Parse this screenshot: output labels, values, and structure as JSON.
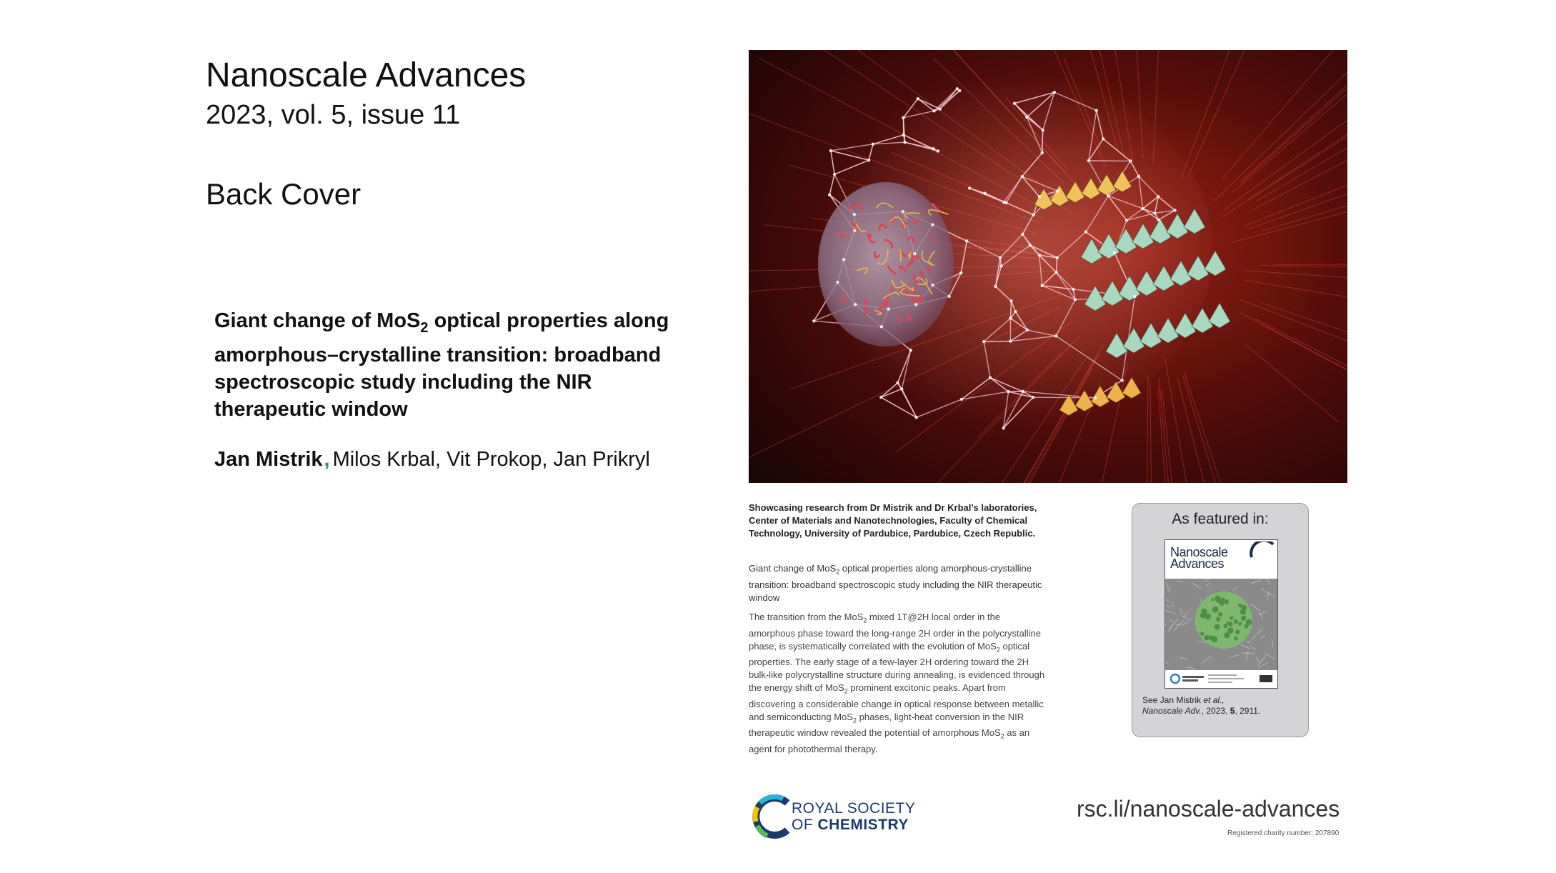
{
  "slide": {
    "journal_title": "Nanoscale Advances",
    "issue": "2023, vol. 5, issue 11",
    "cover_type": "Back Cover",
    "article_title_before": "Giant change of MoS",
    "article_title_sub": "2",
    "article_title_after": " optical properties along amorphous–crystalline transition: broadband spectroscopic study including the NIR therapeutic window",
    "author_lead": "Jan Mistrik",
    "author_separator": ",",
    "authors_rest": "Milos Krbal, Vit Prokop, Jan Prikryl"
  },
  "caption": {
    "showcase": "Showcasing research from Dr Mistrik and Dr Krbal’s laboratories, Center of Materials and Nanotechnologies, Faculty of Chemical Technology, University of Pardubice, Pardubice, Czech Republic.",
    "title_a": "Giant change of MoS",
    "title_sub": "2",
    "title_b": " optical properties along amorphous-crystalline transition: broadband spectroscopic study including the NIR therapeutic window",
    "abs_1": "The transition from the MoS",
    "abs_2": " mixed 1T@2H local order in the amorphous phase toward the long-range 2H order in the polycrystalline phase, is systematically correlated with the evolution of MoS",
    "abs_3": " optical properties. The early stage of a few-layer 2H ordering toward the 2H bulk-like polycrystalline structure during annealing, is evidenced through the energy shift of MoS",
    "abs_4": " prominent excitonic peaks. Apart from discovering a considerable change in optical response between metallic and semiconducting MoS",
    "abs_5": " phases, light-heat conversion in the NIR therapeutic window revealed the potential of amorphous MoS",
    "abs_6": " as an agent for photothermal therapy.",
    "sub": "2"
  },
  "featured": {
    "label": "As featured in:",
    "mini_title_line1": "Nanoscale",
    "mini_title_line2": "Advances",
    "ref_see": "See Jan Mistrik ",
    "ref_etal": "et al.,",
    "ref_journal": "Nanoscale Adv.",
    "ref_year": ", 2023, ",
    "ref_vol": "5",
    "ref_page": ", 2911."
  },
  "footer": {
    "rsc_line1": "ROYAL SOCIETY",
    "rsc_line2_of": "OF ",
    "rsc_line2_chem": "CHEMISTRY",
    "url": "rsc.li/nanoscale-advances",
    "charity": "Registered charity number: 207890"
  },
  "colors": {
    "accent_green": "#2e9a4a",
    "rsc_blue": "#1b3a6b",
    "cover_bg_dark": "#1a0505",
    "cover_bg_red": "#8a1a12"
  }
}
